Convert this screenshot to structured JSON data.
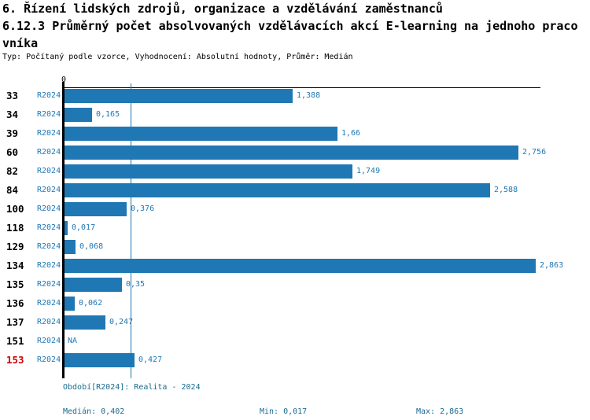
{
  "header": {
    "title": "6. Řízení lidských zdrojů, organizace a vzdělávání zaměstnanců",
    "subtitle": "6.12.3 Průměrný počet absolvovaných vzdělávacích akcí E-learning na jednoho pracovníka",
    "meta": "Typ: Počítaný podle vzorce, Vyhodnocení: Absolutní hodnoty, Průměr: Medián"
  },
  "chart_data": {
    "type": "bar",
    "orientation": "horizontal",
    "title": "6.12.3 Průměrný počet absolvovaných vzdělávacích akcí E-learning na jednoho pracovníka",
    "xlabel": "",
    "ylabel": "",
    "xlim": [
      0,
      2.9
    ],
    "grid": false,
    "axis_zero_label": "0",
    "period": "R2024",
    "median_value": 0.402,
    "rows": [
      {
        "id": "33",
        "period": "R2024",
        "value": 1.388,
        "value_label": "1,388",
        "highlight": false
      },
      {
        "id": "34",
        "period": "R2024",
        "value": 0.165,
        "value_label": "0,165",
        "highlight": false
      },
      {
        "id": "39",
        "period": "R2024",
        "value": 1.66,
        "value_label": "1,66",
        "highlight": false
      },
      {
        "id": "60",
        "period": "R2024",
        "value": 2.756,
        "value_label": "2,756",
        "highlight": false
      },
      {
        "id": "82",
        "period": "R2024",
        "value": 1.749,
        "value_label": "1,749",
        "highlight": false
      },
      {
        "id": "84",
        "period": "R2024",
        "value": 2.588,
        "value_label": "2,588",
        "highlight": false
      },
      {
        "id": "100",
        "period": "R2024",
        "value": 0.376,
        "value_label": "0,376",
        "highlight": false
      },
      {
        "id": "118",
        "period": "R2024",
        "value": 0.017,
        "value_label": "0,017",
        "highlight": false
      },
      {
        "id": "129",
        "period": "R2024",
        "value": 0.068,
        "value_label": "0,068",
        "highlight": false
      },
      {
        "id": "134",
        "period": "R2024",
        "value": 2.863,
        "value_label": "2,863",
        "highlight": false
      },
      {
        "id": "135",
        "period": "R2024",
        "value": 0.35,
        "value_label": "0,35",
        "highlight": false
      },
      {
        "id": "136",
        "period": "R2024",
        "value": 0.062,
        "value_label": "0,062",
        "highlight": false
      },
      {
        "id": "137",
        "period": "R2024",
        "value": 0.247,
        "value_label": "0,247",
        "highlight": false
      },
      {
        "id": "151",
        "period": "R2024",
        "value": null,
        "value_label": "NA",
        "highlight": false
      },
      {
        "id": "153",
        "period": "R2024",
        "value": 0.427,
        "value_label": "0,427",
        "highlight": true
      }
    ],
    "footer": {
      "period_legend": "Období[R2024]: Realita - 2024",
      "median": "Medián: 0,402",
      "min": "Min: 0,017",
      "max": "Max: 2,863"
    }
  },
  "colors": {
    "bar": "#1F77B4",
    "median_line": "#1F77B4",
    "blue_text": "#1F77B4",
    "footer_text": "#1A6A8F",
    "highlight": "#CC0000",
    "axis": "#000000"
  }
}
